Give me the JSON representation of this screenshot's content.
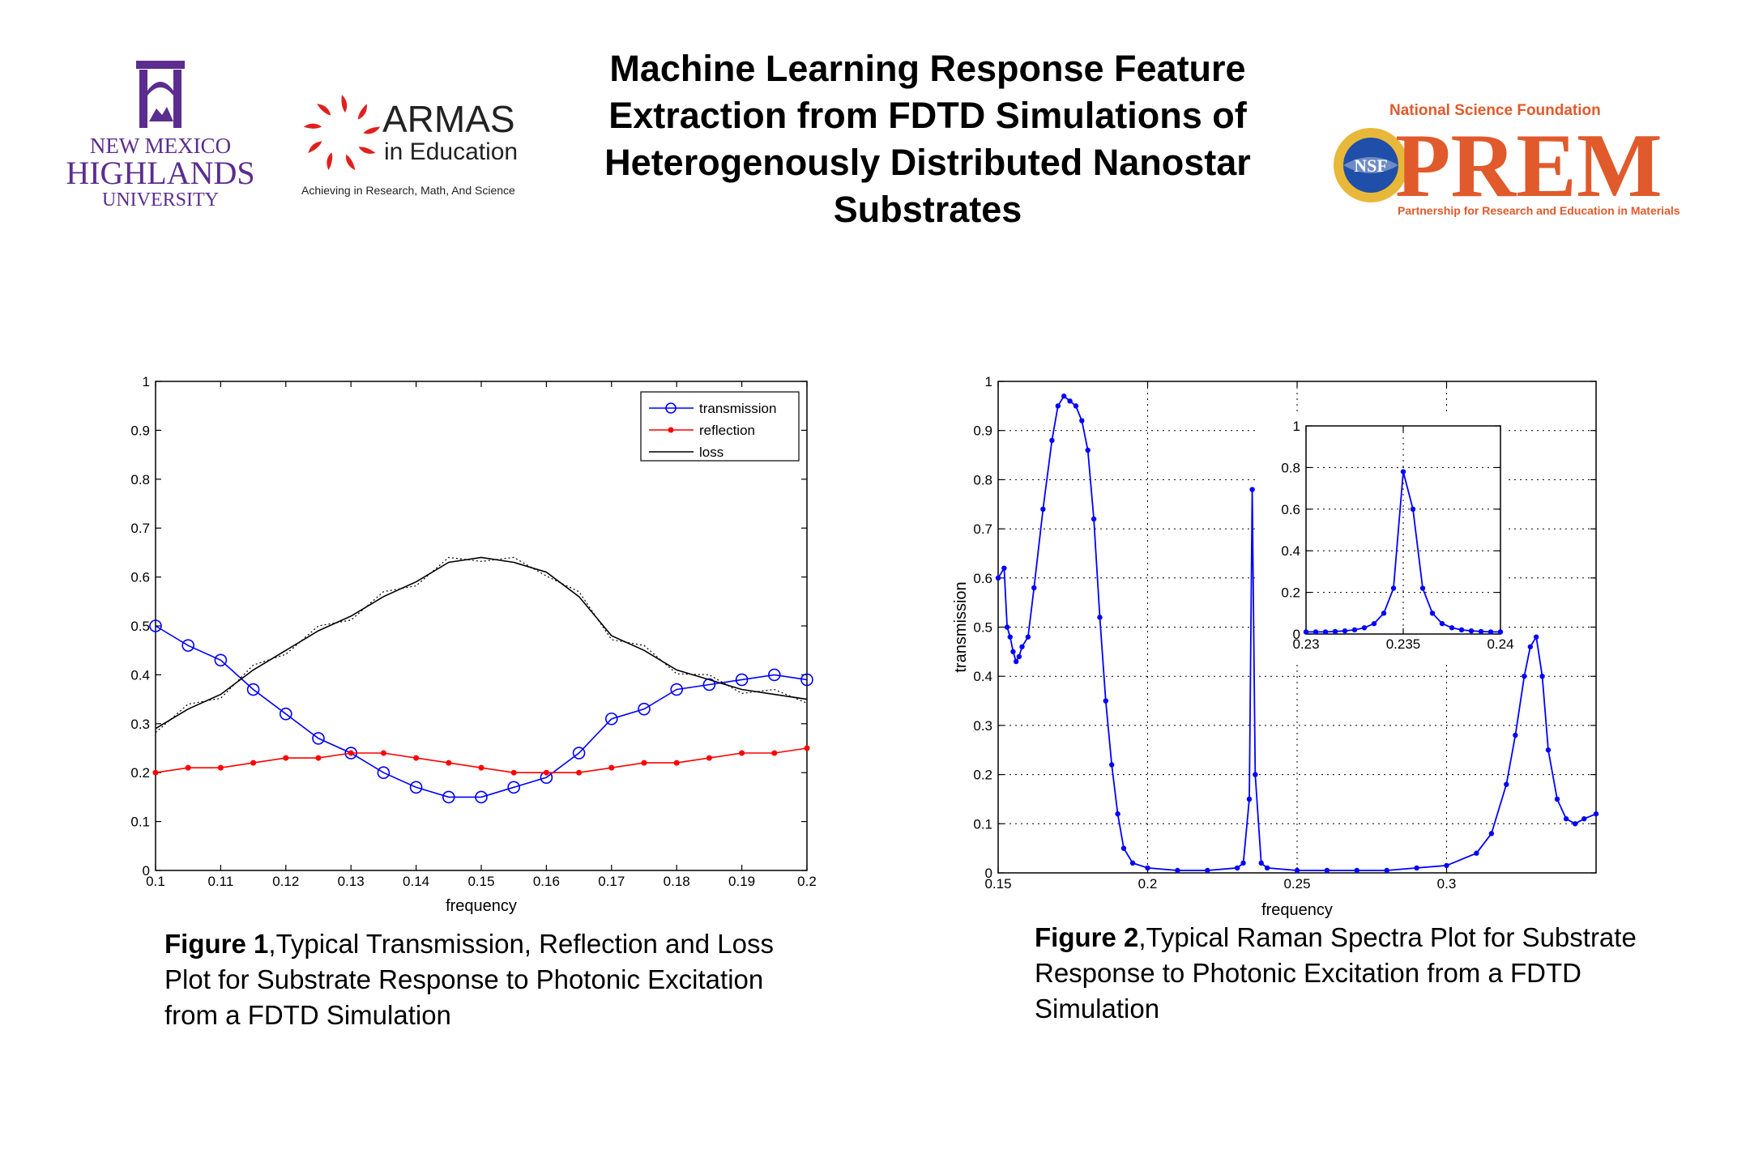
{
  "header": {
    "title_lines": [
      "Machine Learning Response Feature",
      "Extraction from FDTD Simulations of",
      "Heterogenously Distributed Nanostar",
      "Substrates"
    ],
    "nmhu": {
      "line1": "NEW MEXICO",
      "line2": "HIGHLANDS",
      "line3": "UNIVERSITY",
      "color": "#5b2d8e"
    },
    "armas": {
      "name": "ARMAS",
      "sub": "in Education",
      "tagline": "Achieving in Research, Math, And Science",
      "color": "#e0201d"
    },
    "prem": {
      "top": "National Science Foundation",
      "name": "PREM",
      "badge": "NSF",
      "bottom": "Partnership for Research and Education in Materials",
      "color": "#e05a2b"
    }
  },
  "captions": [
    {
      "label": "Figure 1",
      "text": ",Typical Transmission, Reflection and Loss Plot for Substrate Response to Photonic Excitation from a FDTD Simulation"
    },
    {
      "label": "Figure 2",
      "text": ",Typical Raman Spectra Plot for Substrate Response to Photonic Excitation from a FDTD Simulation"
    }
  ],
  "chart_data": [
    {
      "type": "line",
      "xlabel": "frequency",
      "ylabel": "",
      "xlim": [
        0.1,
        0.2
      ],
      "ylim": [
        0,
        1
      ],
      "xticks": [
        "0.1",
        "0.11",
        "0.12",
        "0.13",
        "0.14",
        "0.15",
        "0.16",
        "0.17",
        "0.18",
        "0.19",
        "0.2"
      ],
      "yticks": [
        "0",
        "0.1",
        "0.2",
        "0.3",
        "0.4",
        "0.5",
        "0.6",
        "0.7",
        "0.8",
        "0.9",
        "1"
      ],
      "grid": false,
      "legend_position": "top-right",
      "x": [
        0.1,
        0.105,
        0.11,
        0.115,
        0.12,
        0.125,
        0.13,
        0.135,
        0.14,
        0.145,
        0.15,
        0.155,
        0.16,
        0.165,
        0.17,
        0.175,
        0.18,
        0.185,
        0.19,
        0.195,
        0.2
      ],
      "series": [
        {
          "name": "transmission",
          "color": "#0000ff",
          "marker": "circle",
          "values": [
            0.5,
            0.46,
            0.43,
            0.37,
            0.32,
            0.27,
            0.24,
            0.2,
            0.17,
            0.15,
            0.15,
            0.17,
            0.19,
            0.24,
            0.31,
            0.33,
            0.37,
            0.38,
            0.39,
            0.4,
            0.39
          ]
        },
        {
          "name": "reflection",
          "color": "#ff0000",
          "marker": "dot",
          "values": [
            0.2,
            0.21,
            0.21,
            0.22,
            0.23,
            0.23,
            0.24,
            0.24,
            0.23,
            0.22,
            0.21,
            0.2,
            0.2,
            0.2,
            0.21,
            0.22,
            0.22,
            0.23,
            0.24,
            0.24,
            0.25
          ]
        },
        {
          "name": "loss",
          "color": "#000000",
          "marker": "none",
          "values": [
            0.29,
            0.33,
            0.36,
            0.41,
            0.45,
            0.49,
            0.52,
            0.56,
            0.59,
            0.63,
            0.64,
            0.63,
            0.61,
            0.56,
            0.48,
            0.45,
            0.41,
            0.39,
            0.37,
            0.36,
            0.35
          ]
        }
      ]
    },
    {
      "type": "line",
      "xlabel": "frequency",
      "ylabel": "transmission",
      "xlim": [
        0.15,
        0.35
      ],
      "ylim": [
        0,
        1
      ],
      "xticks": [
        "0.15",
        "0.2",
        "0.25",
        "0.3"
      ],
      "yticks": [
        "0",
        "0.1",
        "0.2",
        "0.3",
        "0.4",
        "0.5",
        "0.6",
        "0.7",
        "0.8",
        "0.9",
        "1"
      ],
      "grid": true,
      "series": [
        {
          "name": "",
          "color": "#0000ff",
          "marker": "dot",
          "x": [
            0.15,
            0.152,
            0.153,
            0.154,
            0.155,
            0.156,
            0.157,
            0.158,
            0.16,
            0.162,
            0.165,
            0.168,
            0.17,
            0.172,
            0.174,
            0.176,
            0.178,
            0.18,
            0.182,
            0.184,
            0.186,
            0.188,
            0.19,
            0.192,
            0.195,
            0.2,
            0.21,
            0.22,
            0.23,
            0.232,
            0.234,
            0.235,
            0.236,
            0.238,
            0.24,
            0.25,
            0.26,
            0.27,
            0.28,
            0.29,
            0.3,
            0.31,
            0.315,
            0.32,
            0.323,
            0.326,
            0.328,
            0.33,
            0.332,
            0.334,
            0.337,
            0.34,
            0.343,
            0.346,
            0.35
          ],
          "values": [
            0.6,
            0.62,
            0.5,
            0.48,
            0.45,
            0.43,
            0.44,
            0.46,
            0.48,
            0.58,
            0.74,
            0.88,
            0.95,
            0.97,
            0.96,
            0.95,
            0.92,
            0.86,
            0.72,
            0.52,
            0.35,
            0.22,
            0.12,
            0.05,
            0.02,
            0.01,
            0.005,
            0.005,
            0.01,
            0.02,
            0.15,
            0.78,
            0.2,
            0.02,
            0.01,
            0.005,
            0.005,
            0.005,
            0.005,
            0.01,
            0.015,
            0.04,
            0.08,
            0.18,
            0.28,
            0.4,
            0.46,
            0.48,
            0.4,
            0.25,
            0.15,
            0.11,
            0.1,
            0.11,
            0.12
          ]
        }
      ],
      "inset": {
        "type": "line",
        "xlim": [
          0.23,
          0.24
        ],
        "ylim": [
          0,
          1
        ],
        "xticks": [
          "0.23",
          "0.235",
          "0.24"
        ],
        "yticks": [
          "0",
          "0.2",
          "0.4",
          "0.6",
          "0.8",
          "1"
        ],
        "grid": true,
        "x": [
          0.23,
          0.2305,
          0.231,
          0.2315,
          0.232,
          0.2325,
          0.233,
          0.2335,
          0.234,
          0.2345,
          0.235,
          0.2355,
          0.236,
          0.2365,
          0.237,
          0.2375,
          0.238,
          0.2385,
          0.239,
          0.2395,
          0.24
        ],
        "values": [
          0.01,
          0.01,
          0.01,
          0.012,
          0.015,
          0.02,
          0.03,
          0.05,
          0.1,
          0.22,
          0.78,
          0.6,
          0.22,
          0.1,
          0.05,
          0.03,
          0.02,
          0.015,
          0.012,
          0.01,
          0.01
        ]
      }
    }
  ]
}
